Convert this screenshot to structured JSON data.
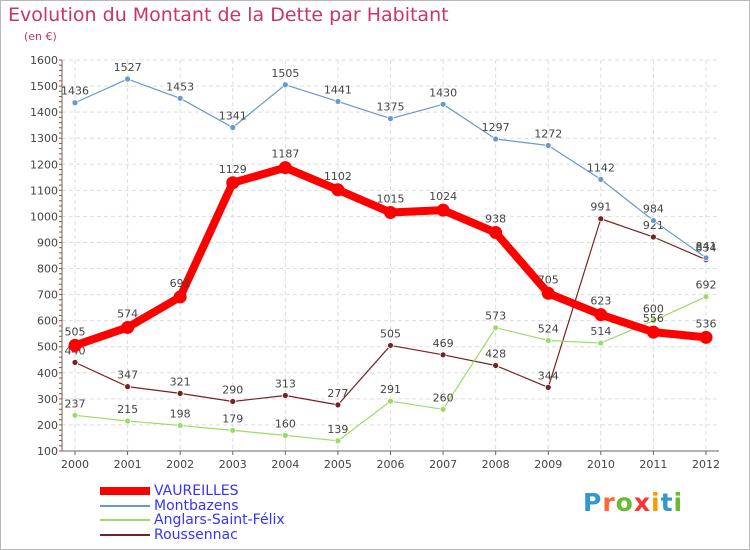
{
  "title": "Evolution du Montant de la Dette par Habitant",
  "subtitle": "(en €)",
  "logo": {
    "letters": [
      "P",
      "r",
      "o",
      "x",
      "i",
      "t",
      "i"
    ],
    "colors": [
      "#3399cc",
      "#ff6633",
      "#66bb33",
      "#ff3333",
      "#ff9900",
      "#3399cc",
      "#66bb33"
    ]
  },
  "chart_data": {
    "type": "line",
    "title": "Evolution du Montant de la Dette par Habitant",
    "subtitle": "(en €)",
    "xlabel": "",
    "ylabel": "",
    "ylim": [
      100,
      1600
    ],
    "grid": true,
    "legend_position": "bottom-left",
    "x": [
      2000,
      2001,
      2002,
      2003,
      2004,
      2005,
      2006,
      2007,
      2008,
      2009,
      2010,
      2011,
      2012
    ],
    "yticks": [
      100,
      200,
      300,
      400,
      500,
      600,
      700,
      800,
      900,
      1000,
      1100,
      1200,
      1300,
      1400,
      1500,
      1600
    ],
    "series": [
      {
        "name": "VAUREILLES",
        "color": "#ff0000",
        "values": [
          505,
          574,
          691,
          1129,
          1187,
          1102,
          1015,
          1024,
          938,
          705,
          623,
          556,
          536
        ]
      },
      {
        "name": "Montbazens",
        "color": "#6699cc",
        "values": [
          1436,
          1527,
          1453,
          1341,
          1505,
          1441,
          1375,
          1430,
          1297,
          1272,
          1142,
          984,
          841
        ]
      },
      {
        "name": "Anglars-Saint-Félix",
        "color": "#99dd66",
        "values": [
          237,
          215,
          198,
          179,
          160,
          139,
          291,
          260,
          573,
          524,
          514,
          600,
          692
        ]
      },
      {
        "name": "Roussennac",
        "color": "#772222",
        "values": [
          440,
          347,
          321,
          290,
          313,
          277,
          505,
          469,
          428,
          344,
          991,
          921,
          834
        ]
      }
    ]
  }
}
